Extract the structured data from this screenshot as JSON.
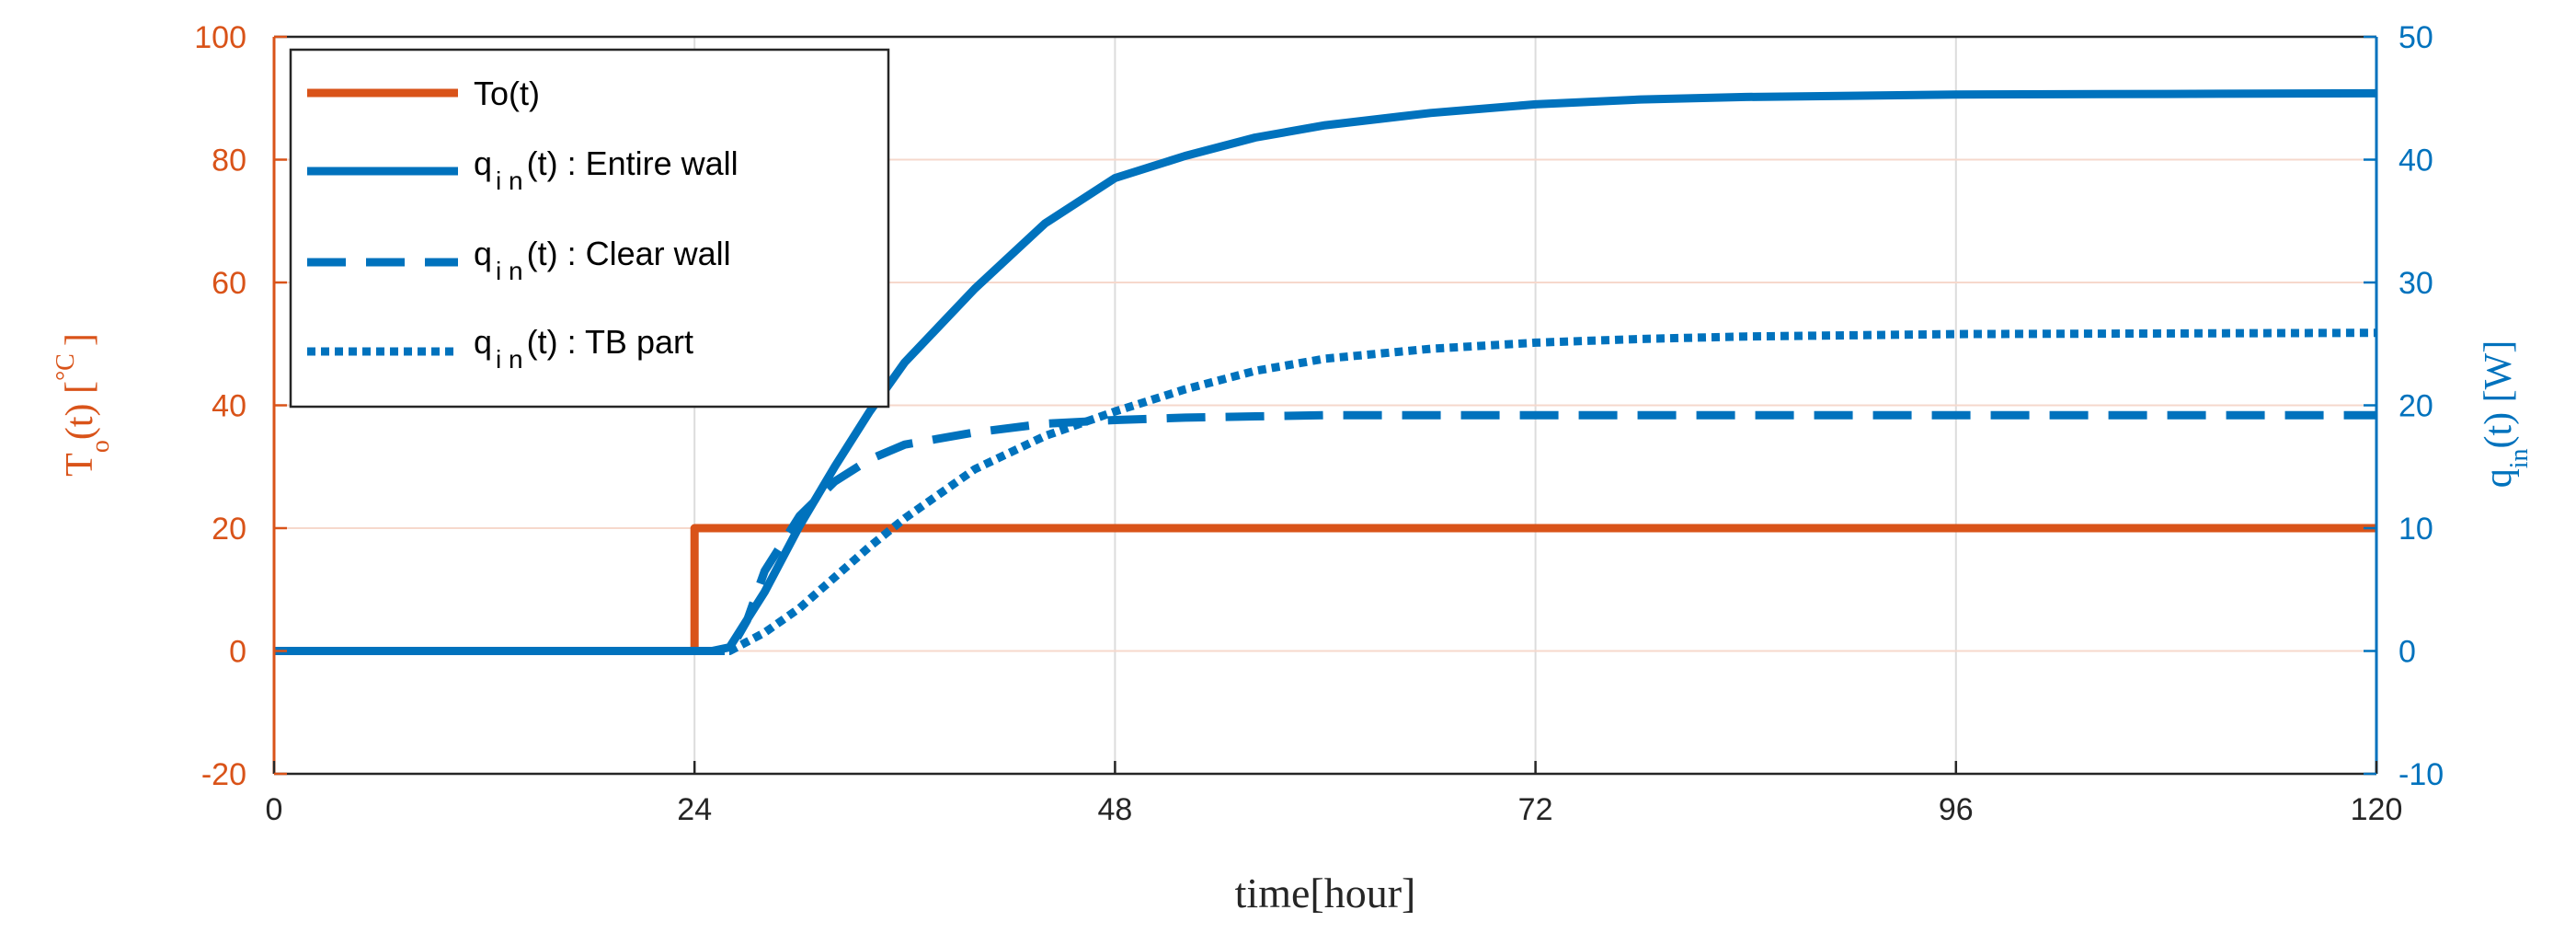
{
  "chart_data": {
    "type": "line",
    "xlabel": "time[hour]",
    "xlim": [
      0,
      120
    ],
    "xticks": [
      0,
      24,
      48,
      72,
      96,
      120
    ],
    "xtick_labels": [
      "0",
      "24",
      "48",
      "72",
      "96",
      "120"
    ],
    "grid": true,
    "legend_position": "top-left",
    "y_left": {
      "label_main": "T",
      "label_sub": "o",
      "label_rest": "(t) [",
      "label_unit": "°C",
      "label_close": "]",
      "ylim": [
        -20,
        100
      ],
      "ticks": [
        -20,
        0,
        20,
        40,
        60,
        80,
        100
      ],
      "tick_labels": [
        "-20",
        "0",
        "20",
        "40",
        "60",
        "80",
        "100"
      ],
      "color": "#D95319"
    },
    "y_right": {
      "label_main": "q",
      "label_sub": "in",
      "label_rest": "(t) [W]",
      "ylim": [
        -10,
        50
      ],
      "ticks": [
        -10,
        0,
        10,
        20,
        30,
        40,
        50
      ],
      "tick_labels": [
        "-10",
        "0",
        "10",
        "20",
        "30",
        "40",
        "50"
      ],
      "color": "#0072BD"
    },
    "series": [
      {
        "name": "To(t)",
        "axis": "left",
        "color": "#D95319",
        "style": "solid",
        "x": [
          0,
          24,
          24,
          120
        ],
        "y": [
          0,
          0,
          20,
          20
        ]
      },
      {
        "name_main": "q",
        "name_sub": "i n",
        "name_rest": "(t) : Entire wall",
        "axis": "right",
        "color": "#0072BD",
        "style": "solid",
        "x": [
          0,
          24,
          25,
          26,
          28,
          30,
          32,
          34,
          36,
          40,
          44,
          48,
          52,
          56,
          60,
          66,
          72,
          78,
          84,
          90,
          96,
          108,
          120
        ],
        "y": [
          0,
          0,
          0,
          0.3,
          4.8,
          10.2,
          15,
          19.5,
          23.5,
          29.5,
          34.8,
          38.5,
          40.3,
          41.8,
          42.8,
          43.8,
          44.5,
          44.9,
          45.1,
          45.2,
          45.3,
          45.35,
          45.4
        ]
      },
      {
        "name_main": "q",
        "name_sub": "i n",
        "name_rest": "(t) : Clear wall",
        "axis": "right",
        "color": "#0072BD",
        "style": "dashed",
        "x": [
          0,
          24,
          26,
          27,
          28,
          30,
          32,
          34,
          36,
          40,
          44,
          48,
          52,
          56,
          60,
          72,
          84,
          96,
          108,
          120
        ],
        "y": [
          0,
          0,
          0,
          2.5,
          6.5,
          11,
          13.8,
          15.6,
          16.8,
          17.8,
          18.5,
          18.8,
          19,
          19.1,
          19.2,
          19.2,
          19.2,
          19.2,
          19.2,
          19.2
        ]
      },
      {
        "name_main": "q",
        "name_sub": "i n",
        "name_rest": "(t) : TB part",
        "axis": "right",
        "color": "#0072BD",
        "style": "dotted",
        "x": [
          0,
          24,
          26,
          28,
          30,
          32,
          34,
          36,
          40,
          44,
          48,
          52,
          56,
          60,
          66,
          72,
          78,
          84,
          90,
          96,
          108,
          120
        ],
        "y": [
          0,
          0,
          0,
          1.5,
          3.5,
          6,
          8.5,
          10.8,
          14.8,
          17.5,
          19.5,
          21.3,
          22.8,
          23.8,
          24.6,
          25.1,
          25.4,
          25.6,
          25.7,
          25.8,
          25.85,
          25.9
        ]
      }
    ]
  }
}
